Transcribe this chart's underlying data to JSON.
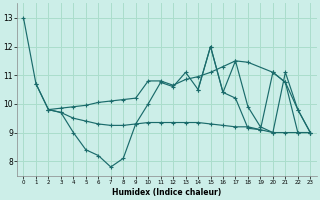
{
  "xlabel": "Humidex (Indice chaleur)",
  "bg_color": "#cceee8",
  "grid_color": "#aaddcc",
  "line_color": "#1a6b6b",
  "xlim": [
    -0.5,
    23.5
  ],
  "ylim": [
    7.5,
    13.5
  ],
  "yticks": [
    8,
    9,
    10,
    11,
    12,
    13
  ],
  "xticks": [
    0,
    1,
    2,
    3,
    4,
    5,
    6,
    7,
    8,
    9,
    10,
    11,
    12,
    13,
    14,
    15,
    16,
    17,
    18,
    19,
    20,
    21,
    22,
    23
  ],
  "series": [
    {
      "x": [
        0,
        1,
        2,
        3,
        4,
        5,
        6,
        7,
        8,
        9,
        10,
        11,
        12,
        13,
        14,
        15,
        16,
        17,
        18,
        19,
        20,
        21,
        22,
        23
      ],
      "y": [
        13.0,
        10.7,
        9.8,
        9.7,
        9.0,
        8.4,
        8.2,
        7.8,
        8.1,
        9.3,
        10.0,
        10.75,
        10.6,
        11.1,
        10.5,
        12.0,
        10.4,
        10.2,
        9.15,
        9.1,
        11.1,
        10.75,
        9.0,
        9.0
      ]
    },
    {
      "x": [
        1,
        2,
        3,
        4,
        5,
        6,
        7,
        8,
        9,
        10,
        11,
        12,
        13,
        14,
        15,
        16,
        17,
        18,
        20,
        21,
        22,
        23
      ],
      "y": [
        10.7,
        9.8,
        9.85,
        9.9,
        9.95,
        10.05,
        10.1,
        10.15,
        10.2,
        10.8,
        10.8,
        10.65,
        10.85,
        10.95,
        11.1,
        11.3,
        11.5,
        11.45,
        11.1,
        10.75,
        9.8,
        9.0
      ]
    },
    {
      "x": [
        2,
        3,
        4,
        5,
        6,
        7,
        8,
        9,
        10,
        11,
        12,
        13,
        14,
        15,
        16,
        17,
        18,
        19,
        20,
        21,
        22,
        23
      ],
      "y": [
        9.8,
        9.7,
        9.5,
        9.4,
        9.3,
        9.25,
        9.25,
        9.3,
        9.35,
        9.35,
        9.35,
        9.35,
        9.35,
        9.3,
        9.25,
        9.2,
        9.2,
        9.1,
        9.0,
        9.0,
        9.0,
        9.0
      ]
    },
    {
      "x": [
        14,
        15,
        16,
        17,
        18,
        19,
        20,
        21,
        22,
        23
      ],
      "y": [
        10.5,
        12.0,
        10.4,
        11.5,
        9.9,
        9.2,
        9.0,
        11.1,
        9.8,
        9.0
      ]
    }
  ]
}
